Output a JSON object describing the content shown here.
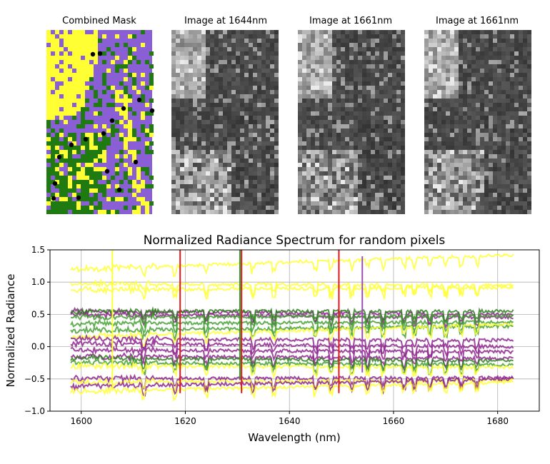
{
  "panels": [
    {
      "title": "Combined Mask",
      "kind": "mask"
    },
    {
      "title": "Image at 1644nm",
      "kind": "grayscale",
      "seed": 11
    },
    {
      "title": "Image at 1661nm",
      "kind": "grayscale",
      "seed": 23
    },
    {
      "title": "Image at 1661nm",
      "kind": "grayscale",
      "seed": 37
    }
  ],
  "mask_colors": {
    "yellow": "#ffff33",
    "purple": "#8a5fd6",
    "green": "#1f7a12",
    "dot": "#000000"
  },
  "chart_data": {
    "type": "line",
    "title": "Normalized Radiance Spectrum for random pixels",
    "xlabel": "Wavelength (nm)",
    "ylabel": "Normalized Radiance",
    "xlim": [
      1594,
      1688
    ],
    "ylim": [
      -1.0,
      1.5
    ],
    "x_range": [
      1598,
      1683
    ],
    "xticks": [
      1600,
      1620,
      1640,
      1660,
      1680
    ],
    "xtick_labels": [
      "1600",
      "1620",
      "1640",
      "1660",
      "1680"
    ],
    "yticks": [
      -1.0,
      -0.5,
      0.0,
      0.5,
      1.0,
      1.5
    ],
    "ytick_labels": [
      "−1.0",
      "−0.5",
      "0.0",
      "0.5",
      "1.0",
      "1.5"
    ],
    "grid": true,
    "series": [
      {
        "name": "yellow pixel 1",
        "color": "#ffff33",
        "start": 1.2,
        "end": 1.42
      },
      {
        "name": "yellow pixel 2",
        "color": "#ffff33",
        "start": 0.97,
        "end": 0.95
      },
      {
        "name": "yellow pixel 3",
        "color": "#ffff33",
        "start": 0.88,
        "end": 0.92
      },
      {
        "name": "purple pixel 1",
        "color": "#8b1f8b",
        "start": 0.55,
        "end": 0.5
      },
      {
        "name": "purple pixel 2",
        "color": "#8b1f8b",
        "start": 0.5,
        "end": 0.45
      },
      {
        "name": "green pixel 1",
        "color": "#2e7d1e",
        "start": 0.55,
        "end": 0.55
      },
      {
        "name": "green pixel 2",
        "color": "#3f9e2e",
        "start": 0.45,
        "end": 0.48
      },
      {
        "name": "green pixel 3",
        "color": "#3f9e2e",
        "start": 0.36,
        "end": 0.38
      },
      {
        "name": "green pixel 4",
        "color": "#3f9e2e",
        "start": 0.25,
        "end": 0.32
      },
      {
        "name": "yellow pixel 4",
        "color": "#ffff33",
        "start": 0.15,
        "end": 0.35
      },
      {
        "name": "purple pixel 3",
        "color": "#8b1f8b",
        "start": 0.12,
        "end": 0.1
      },
      {
        "name": "purple pixel 4",
        "color": "#8b1f8b",
        "start": 0.05,
        "end": 0.0
      },
      {
        "name": "purple pixel 5",
        "color": "#8b1f8b",
        "start": -0.05,
        "end": -0.08
      },
      {
        "name": "purple pixel 6",
        "color": "#8b1f8b",
        "start": -0.15,
        "end": -0.18
      },
      {
        "name": "green pixel 5",
        "color": "#2e7d1e",
        "start": -0.18,
        "end": -0.22
      },
      {
        "name": "green pixel 6",
        "color": "#3f9e2e",
        "start": -0.25,
        "end": -0.28
      },
      {
        "name": "yellow pixel 5",
        "color": "#ffff33",
        "start": -0.3,
        "end": -0.32
      },
      {
        "name": "purple pixel 7",
        "color": "#8b1f8b",
        "start": -0.5,
        "end": -0.48
      },
      {
        "name": "yellow pixel 6",
        "color": "#ffff33",
        "start": -0.55,
        "end": -0.52
      },
      {
        "name": "purple pixel 8",
        "color": "#8b1f8b",
        "start": -0.62,
        "end": -0.5
      },
      {
        "name": "yellow pixel 7",
        "color": "#ffff33",
        "start": -0.7,
        "end": -0.55
      }
    ],
    "vlines": [
      {
        "x": 1606,
        "color": "#ffff33",
        "y0": -0.65,
        "y1": 1.5
      },
      {
        "x": 1619,
        "color": "#e8161a",
        "y0": -0.72,
        "y1": 1.5
      },
      {
        "x": 1630.5,
        "color": "#2ca02c",
        "y0": -0.5,
        "y1": 1.5
      },
      {
        "x": 1630.8,
        "color": "#e8161a",
        "y0": -0.72,
        "y1": 1.5
      },
      {
        "x": 1649.5,
        "color": "#e8161a",
        "y0": -0.72,
        "y1": 1.5
      },
      {
        "x": 1654,
        "color": "#9b4fb0",
        "y0": -0.4,
        "y1": 1.4
      }
    ]
  }
}
